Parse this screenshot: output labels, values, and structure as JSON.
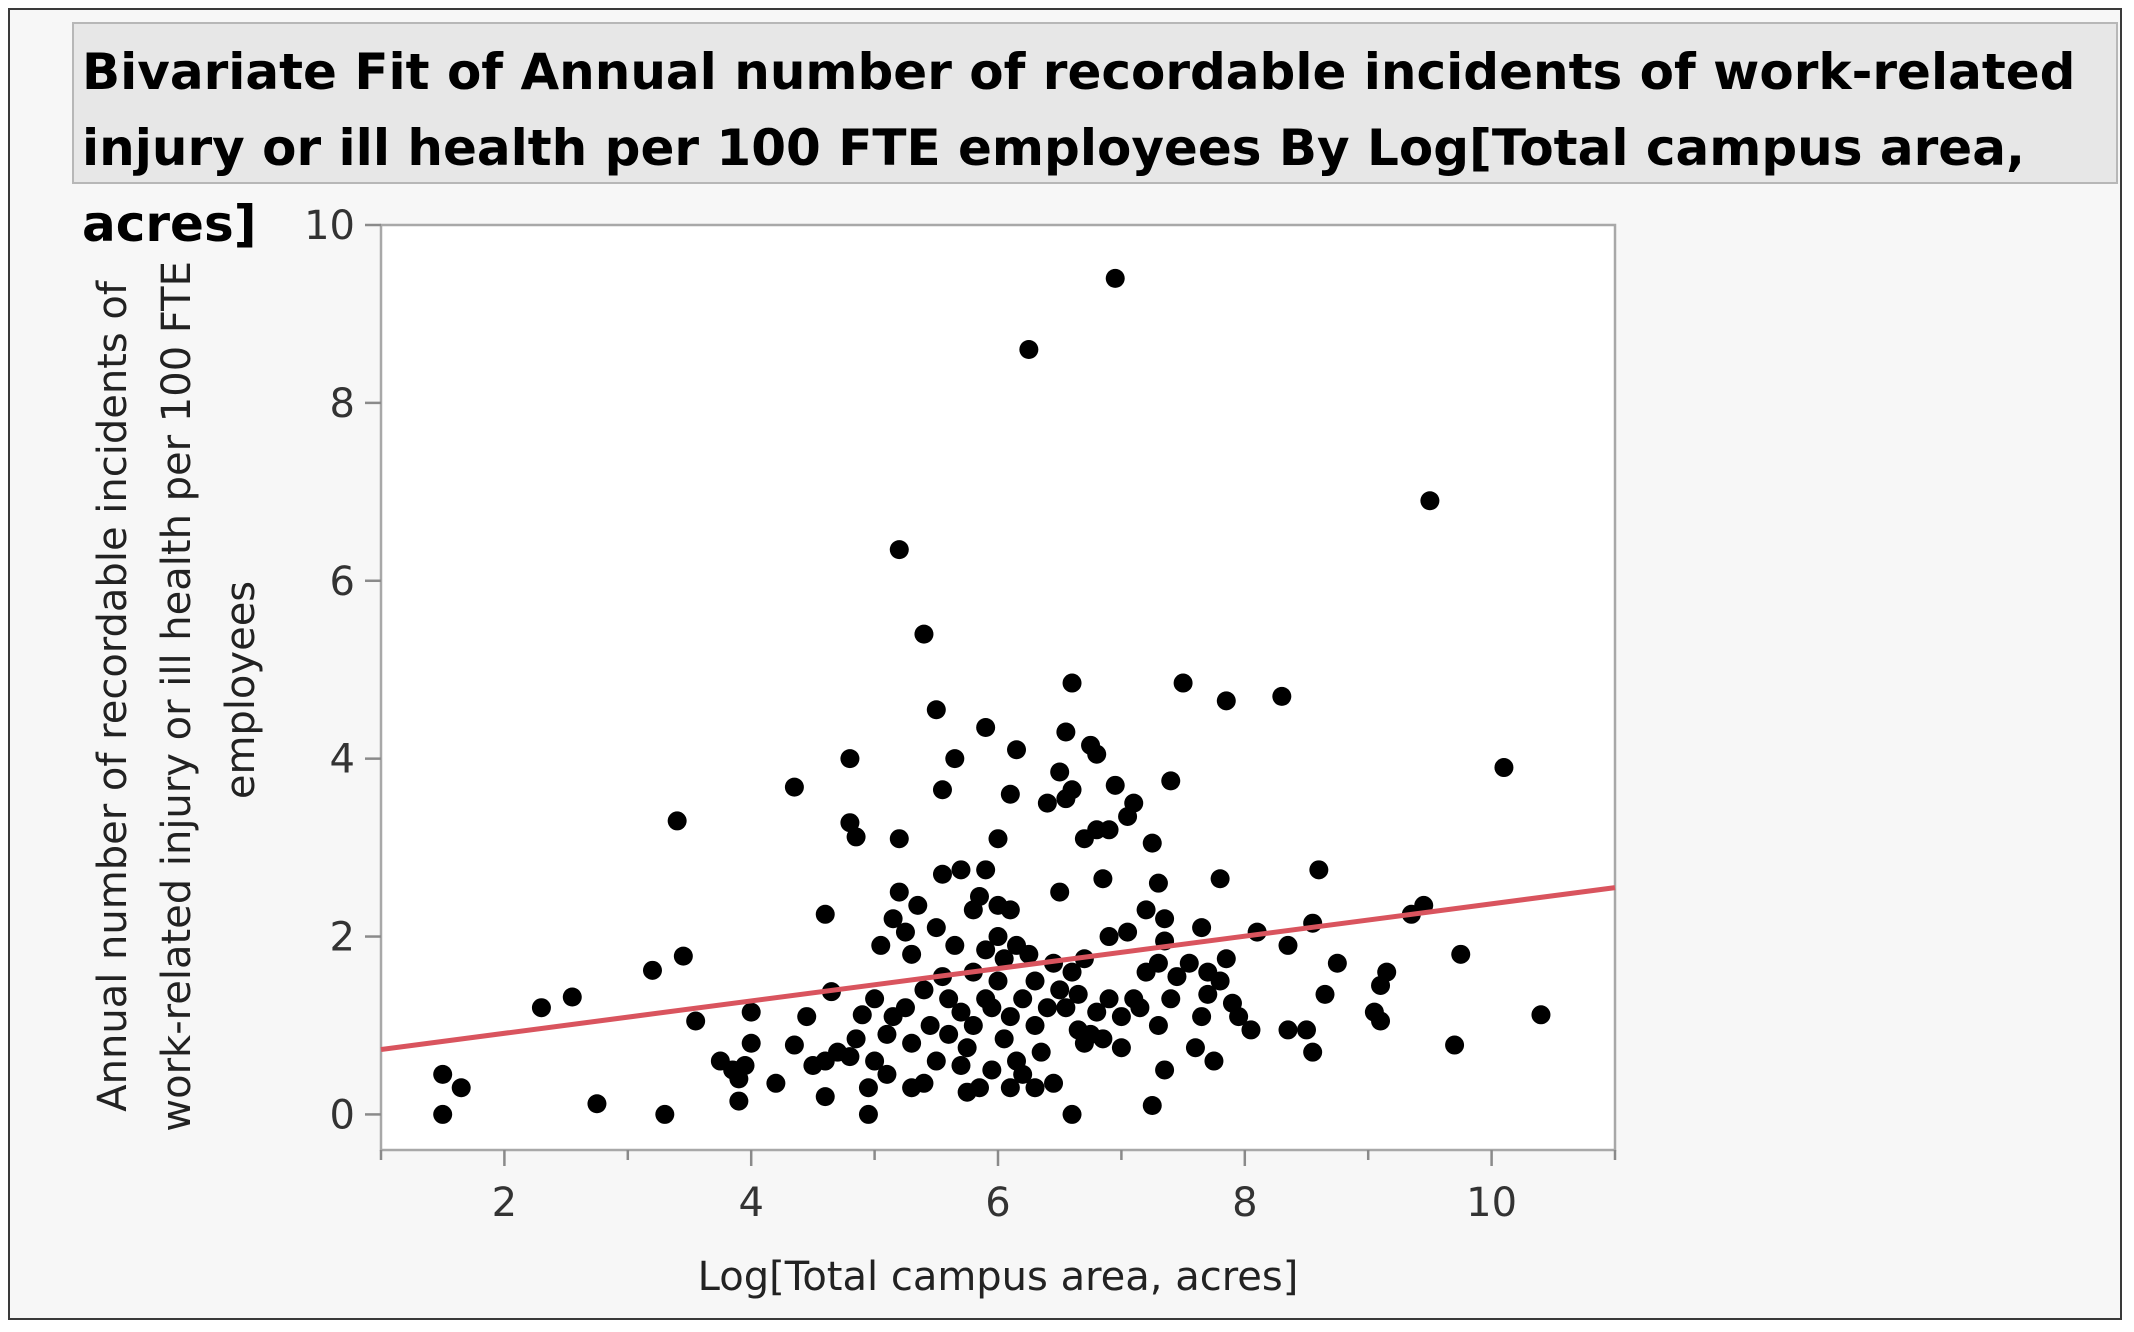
{
  "chart_data": {
    "type": "scatter",
    "title": "Bivariate Fit of Annual number of recordable incidents of work-related\ninjury or ill health per 100 FTE employees By Log[Total campus area, acres]",
    "xlabel": "Log[Total campus area, acres]",
    "ylabel_lines": [
      "Annual number of recordable incidents of",
      "work-related injury or ill health per 100 FTE",
      "employees"
    ],
    "xlim": [
      1,
      11
    ],
    "ylim": [
      -0.4,
      10
    ],
    "xticks": [
      2,
      4,
      6,
      8,
      10
    ],
    "xticks_minor": [
      1,
      3,
      5,
      7,
      9,
      11
    ],
    "yticks": [
      0,
      2,
      4,
      6,
      8,
      10
    ],
    "grid": false,
    "point_color": "#000000",
    "fit_line": {
      "color": "#d9545e",
      "x": [
        1,
        11
      ],
      "y": [
        0.73,
        2.55
      ]
    },
    "points": [
      [
        1.5,
        0.0
      ],
      [
        1.5,
        0.45
      ],
      [
        1.65,
        0.3
      ],
      [
        2.3,
        1.2
      ],
      [
        2.55,
        1.32
      ],
      [
        2.75,
        0.12
      ],
      [
        3.2,
        1.62
      ],
      [
        3.3,
        0.0
      ],
      [
        3.4,
        3.3
      ],
      [
        3.45,
        1.78
      ],
      [
        3.55,
        1.05
      ],
      [
        3.75,
        0.6
      ],
      [
        3.85,
        0.5
      ],
      [
        3.9,
        0.4
      ],
      [
        3.9,
        0.15
      ],
      [
        3.95,
        0.55
      ],
      [
        4.0,
        0.8
      ],
      [
        4.0,
        1.15
      ],
      [
        4.2,
        0.35
      ],
      [
        4.35,
        0.78
      ],
      [
        4.35,
        3.68
      ],
      [
        4.45,
        1.1
      ],
      [
        4.5,
        0.55
      ],
      [
        4.6,
        0.6
      ],
      [
        4.6,
        2.25
      ],
      [
        4.6,
        0.2
      ],
      [
        4.65,
        1.38
      ],
      [
        4.7,
        0.7
      ],
      [
        4.8,
        0.65
      ],
      [
        4.8,
        4.0
      ],
      [
        4.8,
        3.28
      ],
      [
        4.85,
        3.12
      ],
      [
        4.85,
        0.85
      ],
      [
        4.9,
        1.12
      ],
      [
        4.95,
        0.0
      ],
      [
        4.95,
        0.3
      ],
      [
        5.0,
        0.6
      ],
      [
        5.0,
        1.3
      ],
      [
        5.05,
        1.9
      ],
      [
        5.1,
        0.9
      ],
      [
        5.1,
        0.45
      ],
      [
        5.15,
        1.1
      ],
      [
        5.15,
        2.2
      ],
      [
        5.2,
        2.5
      ],
      [
        5.2,
        3.1
      ],
      [
        5.2,
        6.35
      ],
      [
        5.25,
        1.2
      ],
      [
        5.25,
        2.05
      ],
      [
        5.3,
        0.3
      ],
      [
        5.3,
        0.8
      ],
      [
        5.3,
        1.8
      ],
      [
        5.35,
        2.35
      ],
      [
        5.4,
        0.35
      ],
      [
        5.4,
        5.4
      ],
      [
        5.4,
        1.4
      ],
      [
        5.45,
        1.0
      ],
      [
        5.5,
        4.55
      ],
      [
        5.5,
        2.1
      ],
      [
        5.5,
        0.6
      ],
      [
        5.55,
        1.55
      ],
      [
        5.55,
        3.65
      ],
      [
        5.55,
        2.7
      ],
      [
        5.6,
        0.9
      ],
      [
        5.6,
        1.3
      ],
      [
        5.65,
        1.9
      ],
      [
        5.65,
        4.0
      ],
      [
        5.7,
        0.55
      ],
      [
        5.7,
        2.75
      ],
      [
        5.7,
        1.15
      ],
      [
        5.75,
        0.25
      ],
      [
        5.75,
        0.75
      ],
      [
        5.8,
        1.6
      ],
      [
        5.8,
        2.3
      ],
      [
        5.8,
        1.0
      ],
      [
        5.85,
        0.3
      ],
      [
        5.85,
        2.45
      ],
      [
        5.9,
        1.3
      ],
      [
        5.9,
        1.85
      ],
      [
        5.9,
        2.75
      ],
      [
        5.9,
        4.35
      ],
      [
        5.95,
        0.5
      ],
      [
        5.95,
        1.2
      ],
      [
        6.0,
        2.0
      ],
      [
        6.0,
        3.1
      ],
      [
        6.0,
        2.35
      ],
      [
        6.0,
        1.5
      ],
      [
        6.05,
        0.85
      ],
      [
        6.05,
        1.75
      ],
      [
        6.1,
        1.1
      ],
      [
        6.1,
        0.3
      ],
      [
        6.1,
        2.3
      ],
      [
        6.1,
        3.6
      ],
      [
        6.15,
        1.9
      ],
      [
        6.15,
        0.6
      ],
      [
        6.15,
        4.1
      ],
      [
        6.2,
        1.3
      ],
      [
        6.2,
        0.45
      ],
      [
        6.25,
        1.8
      ],
      [
        6.25,
        8.6
      ],
      [
        6.3,
        0.3
      ],
      [
        6.3,
        1.0
      ],
      [
        6.3,
        1.5
      ],
      [
        6.35,
        0.7
      ],
      [
        6.4,
        1.2
      ],
      [
        6.4,
        3.5
      ],
      [
        6.45,
        0.35
      ],
      [
        6.45,
        1.7
      ],
      [
        6.5,
        2.5
      ],
      [
        6.5,
        3.85
      ],
      [
        6.5,
        1.4
      ],
      [
        6.55,
        4.3
      ],
      [
        6.55,
        3.55
      ],
      [
        6.55,
        1.2
      ],
      [
        6.6,
        0.0
      ],
      [
        6.6,
        1.6
      ],
      [
        6.6,
        4.85
      ],
      [
        6.6,
        3.65
      ],
      [
        6.65,
        0.95
      ],
      [
        6.65,
        1.35
      ],
      [
        6.7,
        0.8
      ],
      [
        6.7,
        1.75
      ],
      [
        6.7,
        3.1
      ],
      [
        6.75,
        4.15
      ],
      [
        6.75,
        0.9
      ],
      [
        6.8,
        3.2
      ],
      [
        6.8,
        4.05
      ],
      [
        6.8,
        1.15
      ],
      [
        6.85,
        2.65
      ],
      [
        6.85,
        0.85
      ],
      [
        6.9,
        1.3
      ],
      [
        6.9,
        2.0
      ],
      [
        6.9,
        3.2
      ],
      [
        6.95,
        9.4
      ],
      [
        6.95,
        3.7
      ],
      [
        7.0,
        1.1
      ],
      [
        7.0,
        0.75
      ],
      [
        7.05,
        3.35
      ],
      [
        7.05,
        2.05
      ],
      [
        7.1,
        1.3
      ],
      [
        7.1,
        3.5
      ],
      [
        7.15,
        1.2
      ],
      [
        7.2,
        2.3
      ],
      [
        7.2,
        1.6
      ],
      [
        7.25,
        3.05
      ],
      [
        7.25,
        0.1
      ],
      [
        7.3,
        1.0
      ],
      [
        7.3,
        2.6
      ],
      [
        7.3,
        1.7
      ],
      [
        7.35,
        0.5
      ],
      [
        7.35,
        2.2
      ],
      [
        7.35,
        1.95
      ],
      [
        7.4,
        3.75
      ],
      [
        7.4,
        1.3
      ],
      [
        7.45,
        1.55
      ],
      [
        7.5,
        4.85
      ],
      [
        7.55,
        1.7
      ],
      [
        7.6,
        0.75
      ],
      [
        7.65,
        2.1
      ],
      [
        7.65,
        1.1
      ],
      [
        7.7,
        1.6
      ],
      [
        7.7,
        1.35
      ],
      [
        7.75,
        0.6
      ],
      [
        7.8,
        2.65
      ],
      [
        7.8,
        1.5
      ],
      [
        7.85,
        4.65
      ],
      [
        7.85,
        1.75
      ],
      [
        7.9,
        1.25
      ],
      [
        7.95,
        1.1
      ],
      [
        8.05,
        0.95
      ],
      [
        8.1,
        2.05
      ],
      [
        8.3,
        4.7
      ],
      [
        8.35,
        1.9
      ],
      [
        8.35,
        0.95
      ],
      [
        8.5,
        0.95
      ],
      [
        8.55,
        0.7
      ],
      [
        8.55,
        2.15
      ],
      [
        8.6,
        2.75
      ],
      [
        8.65,
        1.35
      ],
      [
        8.75,
        1.7
      ],
      [
        9.05,
        1.15
      ],
      [
        9.1,
        1.45
      ],
      [
        9.1,
        1.05
      ],
      [
        9.15,
        1.6
      ],
      [
        9.35,
        2.25
      ],
      [
        9.45,
        2.35
      ],
      [
        9.5,
        6.9
      ],
      [
        9.7,
        0.78
      ],
      [
        9.75,
        1.8
      ],
      [
        10.1,
        3.9
      ],
      [
        10.4,
        1.12
      ]
    ]
  }
}
